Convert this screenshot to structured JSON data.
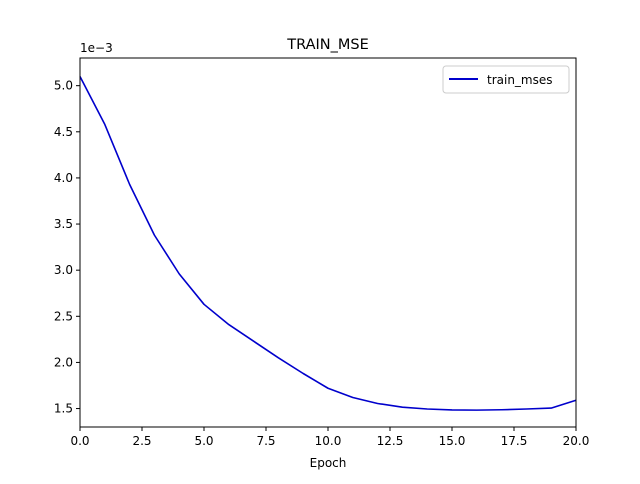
{
  "chart_data": {
    "type": "line",
    "title": "TRAIN_MSE",
    "xlabel": "Epoch",
    "ylabel": "",
    "y_scale_label": "1e−3",
    "xlim": [
      0,
      20
    ],
    "ylim": [
      1.3,
      5.3
    ],
    "x_ticks": [
      0,
      2.5,
      5,
      7.5,
      10,
      12.5,
      15,
      17.5,
      20
    ],
    "x_tick_labels": [
      "0.0",
      "2.5",
      "5.0",
      "7.5",
      "10.0",
      "12.5",
      "15.0",
      "17.5",
      "20.0"
    ],
    "y_ticks": [
      1.5,
      2.0,
      2.5,
      3.0,
      3.5,
      4.0,
      4.5,
      5.0
    ],
    "y_tick_labels": [
      "1.5",
      "2.0",
      "2.5",
      "3.0",
      "3.5",
      "4.0",
      "4.5",
      "5.0"
    ],
    "grid": false,
    "legend_position": "top-right",
    "series": [
      {
        "name": "train_mses",
        "color": "#0000cc",
        "x": [
          0,
          1,
          2,
          3,
          4,
          5,
          6,
          7,
          8,
          9,
          10,
          11,
          12,
          13,
          14,
          15,
          16,
          17,
          18,
          19,
          20
        ],
        "y": [
          5.1,
          4.58,
          3.93,
          3.38,
          2.96,
          2.63,
          2.41,
          2.23,
          2.05,
          1.88,
          1.72,
          1.62,
          1.555,
          1.515,
          1.495,
          1.485,
          1.483,
          1.487,
          1.495,
          1.505,
          1.59
        ]
      }
    ]
  }
}
